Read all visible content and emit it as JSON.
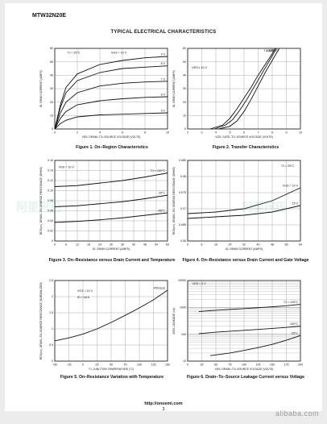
{
  "header": {
    "part_number": "MTW32N20E",
    "section_title": "TYPICAL ELECTRICAL CHARACTERISTICS"
  },
  "footer": {
    "url": "http://onsemi.com",
    "page": "3"
  },
  "watermark": {
    "text": "alibaba.com",
    "cn_text": "阿里巴巴"
  },
  "colors": {
    "ink": "#111111",
    "grid": "#9a9a9a",
    "paper": "#ffffff",
    "background": "#ececec"
  },
  "chart_data": [
    {
      "id": "fig1",
      "type": "line",
      "caption": "Figure 1. On–Region Characteristics",
      "xlabel": "VDS, DRAIN–TO–SOURCE VOLTAGE (VOLTS)",
      "ylabel": "ID, DRAIN CURRENT (AMPS)",
      "xlim": [
        0,
        10
      ],
      "ylim": [
        0,
        60
      ],
      "xticks": [
        "0",
        "2",
        "4",
        "6",
        "8",
        "10"
      ],
      "yticks": [
        "0",
        "10",
        "20",
        "30",
        "40",
        "50",
        "60"
      ],
      "annotations": [
        {
          "text": "TJ = 25°C",
          "x": 1.1,
          "y": 56
        },
        {
          "text": "VGS = 10 V",
          "x": 5.0,
          "y": 56
        }
      ],
      "series": [
        {
          "name": "9 V",
          "points": [
            [
              0,
              0
            ],
            [
              0.5,
              18
            ],
            [
              1,
              31
            ],
            [
              2,
              41
            ],
            [
              4,
              48
            ],
            [
              6,
              51
            ],
            [
              8,
              53
            ],
            [
              10,
              54
            ]
          ]
        },
        {
          "name": "8 V",
          "points": [
            [
              0,
              0
            ],
            [
              0.5,
              16
            ],
            [
              1,
              27
            ],
            [
              2,
              36
            ],
            [
              4,
              42
            ],
            [
              6,
              45
            ],
            [
              8,
              46
            ],
            [
              10,
              47
            ]
          ]
        },
        {
          "name": "7 V",
          "points": [
            [
              0,
              0
            ],
            [
              0.5,
              12
            ],
            [
              1,
              20
            ],
            [
              2,
              27
            ],
            [
              4,
              32
            ],
            [
              6,
              34
            ],
            [
              8,
              35
            ],
            [
              10,
              35.5
            ]
          ]
        },
        {
          "name": "6 V",
          "points": [
            [
              0,
              0
            ],
            [
              0.5,
              8
            ],
            [
              1,
              13
            ],
            [
              2,
              18
            ],
            [
              4,
              21
            ],
            [
              6,
              22.5
            ],
            [
              8,
              23.5
            ],
            [
              10,
              24
            ]
          ]
        },
        {
          "name": "5 V",
          "points": [
            [
              0,
              0
            ],
            [
              0.5,
              4
            ],
            [
              1,
              6.5
            ],
            [
              2,
              9
            ],
            [
              4,
              10.5
            ],
            [
              6,
              11
            ],
            [
              8,
              11.5
            ],
            [
              10,
              12
            ]
          ]
        }
      ]
    },
    {
      "id": "fig2",
      "type": "line",
      "caption": "Figure 2. Transfer Characteristics",
      "xlabel": "VGS, GATE–TO–SOURCE VOLTAGE (VOLTS)",
      "ylabel": "ID, DRAIN CURRENT (AMPS)",
      "xlim": [
        2,
        10
      ],
      "ylim": [
        0,
        60
      ],
      "xticks": [
        "2",
        "3",
        "4",
        "5",
        "6",
        "7",
        "8",
        "9",
        "10"
      ],
      "yticks": [
        "0",
        "10",
        "20",
        "30",
        "40",
        "50",
        "60"
      ],
      "annotations": [
        {
          "text": "VDS ≥ 10 V",
          "x": 2.3,
          "y": 45
        }
      ],
      "series": [
        {
          "name": "TJ = –55°C",
          "points": [
            [
              4.2,
              0
            ],
            [
              5,
              2
            ],
            [
              5.5,
              6
            ],
            [
              6,
              13
            ],
            [
              6.5,
              22
            ],
            [
              7,
              32
            ],
            [
              7.5,
              42
            ],
            [
              8,
              51
            ],
            [
              8.5,
              60
            ]
          ]
        },
        {
          "name": "100°C",
          "points": [
            [
              3.6,
              0
            ],
            [
              4.5,
              3
            ],
            [
              5,
              8
            ],
            [
              5.5,
              15
            ],
            [
              6,
              23
            ],
            [
              6.5,
              31
            ],
            [
              7,
              40
            ],
            [
              7.5,
              48
            ],
            [
              8,
              56
            ],
            [
              8.2,
              60
            ]
          ]
        },
        {
          "name": "25°C",
          "points": [
            [
              3.9,
              0
            ],
            [
              4.7,
              3
            ],
            [
              5.2,
              7
            ],
            [
              5.7,
              14
            ],
            [
              6.2,
              22
            ],
            [
              6.7,
              31
            ],
            [
              7.2,
              40
            ],
            [
              7.7,
              49
            ],
            [
              8.2,
              58
            ],
            [
              8.3,
              60
            ]
          ]
        }
      ]
    },
    {
      "id": "fig3",
      "type": "line",
      "caption": "Figure 3. On–Resistance versus Drain Current and Temperature",
      "xlabel": "ID, DRAIN CURRENT (AMPS)",
      "ylabel": "RDS(on), DRAIN–TO–SOURCE RESISTANCE (OHMS)",
      "xlim": [
        0,
        60
      ],
      "ylim": [
        0,
        0.16
      ],
      "xticks": [
        "0",
        "6",
        "12",
        "18",
        "24",
        "30",
        "36",
        "42",
        "48",
        "54",
        "60"
      ],
      "yticks": [
        "0",
        "0.02",
        "0.04",
        "0.06",
        "0.08",
        "0.10",
        "0.12",
        "0.14",
        "0.16"
      ],
      "annotations": [
        {
          "text": "VGS = 10 V",
          "x": 2,
          "y": 0.145
        }
      ],
      "series": [
        {
          "name": "TJ = 100°C",
          "points": [
            [
              0,
              0.108
            ],
            [
              12,
              0.11
            ],
            [
              24,
              0.115
            ],
            [
              36,
              0.12
            ],
            [
              48,
              0.127
            ],
            [
              60,
              0.135
            ]
          ]
        },
        {
          "name": "25°C",
          "points": [
            [
              0,
              0.068
            ],
            [
              12,
              0.07
            ],
            [
              24,
              0.074
            ],
            [
              36,
              0.078
            ],
            [
              48,
              0.084
            ],
            [
              60,
              0.091
            ]
          ]
        },
        {
          "name": "–55°C",
          "points": [
            [
              0,
              0.037
            ],
            [
              12,
              0.039
            ],
            [
              24,
              0.042
            ],
            [
              36,
              0.046
            ],
            [
              48,
              0.051
            ],
            [
              60,
              0.056
            ]
          ]
        }
      ]
    },
    {
      "id": "fig4",
      "type": "line",
      "caption": "Figure 4. On–Resistance versus Drain Current and Gate Voltage",
      "xlabel": "ID, DRAIN CURRENT (AMPS)",
      "ylabel": "RDS(on), DRAIN–TO–SOURCE RESISTANCE (OHMS)",
      "xlim": [
        0,
        64
      ],
      "ylim": [
        0.06,
        0.085
      ],
      "xticks": [
        "0",
        "8",
        "16",
        "24",
        "32",
        "40",
        "48",
        "56",
        "64"
      ],
      "yticks": [
        "0.06",
        "0.065",
        "0.07",
        "0.075",
        "0.08",
        "0.085"
      ],
      "annotations": [
        {
          "text": "TJ = 25°C",
          "x": 53,
          "y": 0.083
        }
      ],
      "series": [
        {
          "name": "VGS = 10 V",
          "points": [
            [
              0,
              0.0685
            ],
            [
              16,
              0.069
            ],
            [
              32,
              0.07
            ],
            [
              48,
              0.0725
            ],
            [
              56,
              0.0745
            ],
            [
              64,
              0.0765
            ]
          ]
        },
        {
          "name": "15 V",
          "points": [
            [
              0,
              0.067
            ],
            [
              16,
              0.0675
            ],
            [
              32,
              0.068
            ],
            [
              48,
              0.069
            ],
            [
              56,
              0.07
            ],
            [
              64,
              0.071
            ]
          ]
        }
      ]
    },
    {
      "id": "fig5",
      "type": "line",
      "caption": "Figure 5. On–Resistance Variation with Temperature",
      "xlabel": "TJ, JUNCTION TEMPERATURE (°C)",
      "ylabel": "RDS(on), DRAIN–TO–SOURCE RESISTANCE (NORMALIZED)",
      "xlim": [
        -50,
        150
      ],
      "ylim": [
        0,
        2.5
      ],
      "xticks": [
        "–50",
        "–25",
        "0",
        "25",
        "50",
        "75",
        "100",
        "125",
        "150"
      ],
      "yticks": [
        "0",
        "0.5",
        "1",
        "1.5",
        "2",
        "2.5"
      ],
      "annotations": [
        {
          "text": "VGS = 10 V",
          "x": -10,
          "y": 2.15
        },
        {
          "text": "ID = 16 A",
          "x": -10,
          "y": 1.95
        }
      ],
      "series": [
        {
          "name": "RDS(on)",
          "points": [
            [
              -50,
              0.63
            ],
            [
              -25,
              0.72
            ],
            [
              0,
              0.84
            ],
            [
              25,
              1.0
            ],
            [
              50,
              1.2
            ],
            [
              75,
              1.42
            ],
            [
              100,
              1.65
            ],
            [
              125,
              1.9
            ],
            [
              150,
              2.2
            ]
          ]
        }
      ]
    },
    {
      "id": "fig6",
      "type": "line",
      "caption": "Figure 6. Drain–To–Source Leakage Current versus Voltage",
      "xlabel": "VDS, DRAIN–TO–SOURCE VOLTAGE (VOLTS)",
      "ylabel": "IDSS, LEAKAGE (nA)",
      "xscale": "linear",
      "yscale": "log",
      "xlim": [
        0,
        200
      ],
      "ylim": [
        10,
        10000
      ],
      "xticks": [
        "0",
        "25",
        "50",
        "75",
        "100",
        "125",
        "150",
        "175",
        "200"
      ],
      "yticks": [
        "10",
        "100",
        "1000",
        "10000"
      ],
      "annotations": [
        {
          "text": "VGS = 0 V",
          "x": 8,
          "y": 7000
        }
      ],
      "series": [
        {
          "name": "TJ = 125°C",
          "points": [
            [
              20,
              700
            ],
            [
              50,
              780
            ],
            [
              100,
              900
            ],
            [
              150,
              1050
            ],
            [
              175,
              1150
            ],
            [
              200,
              1300
            ]
          ]
        },
        {
          "name": "100°C",
          "points": [
            [
              20,
              105
            ],
            [
              50,
              120
            ],
            [
              100,
              140
            ],
            [
              150,
              165
            ],
            [
              175,
              180
            ],
            [
              200,
              200
            ]
          ]
        },
        {
          "name": "25°C",
          "points": [
            [
              40,
              16
            ],
            [
              75,
              20
            ],
            [
              100,
              25
            ],
            [
              125,
              32
            ],
            [
              150,
              42
            ],
            [
              175,
              60
            ],
            [
              200,
              90
            ]
          ]
        }
      ]
    }
  ]
}
